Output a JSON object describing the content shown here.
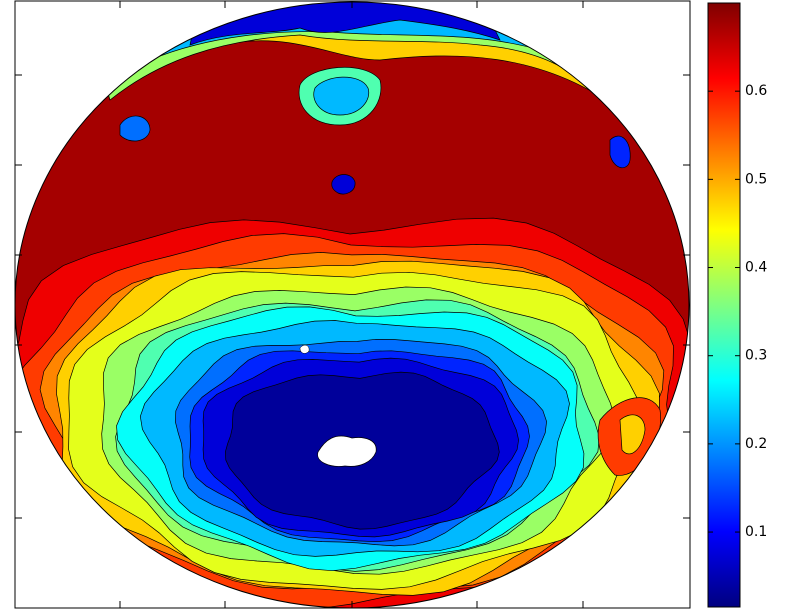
{
  "chart_data": {
    "type": "contour",
    "levels": [
      0.05,
      0.1,
      0.15,
      0.2,
      0.25,
      0.3,
      0.35,
      0.4,
      0.45,
      0.5,
      0.55,
      0.6,
      0.65
    ],
    "clim": [
      0.015,
      0.7
    ],
    "colorbar_ticks": [
      0.1,
      0.2,
      0.3,
      0.4,
      0.5,
      0.6
    ],
    "colormap": "jet"
  }
}
